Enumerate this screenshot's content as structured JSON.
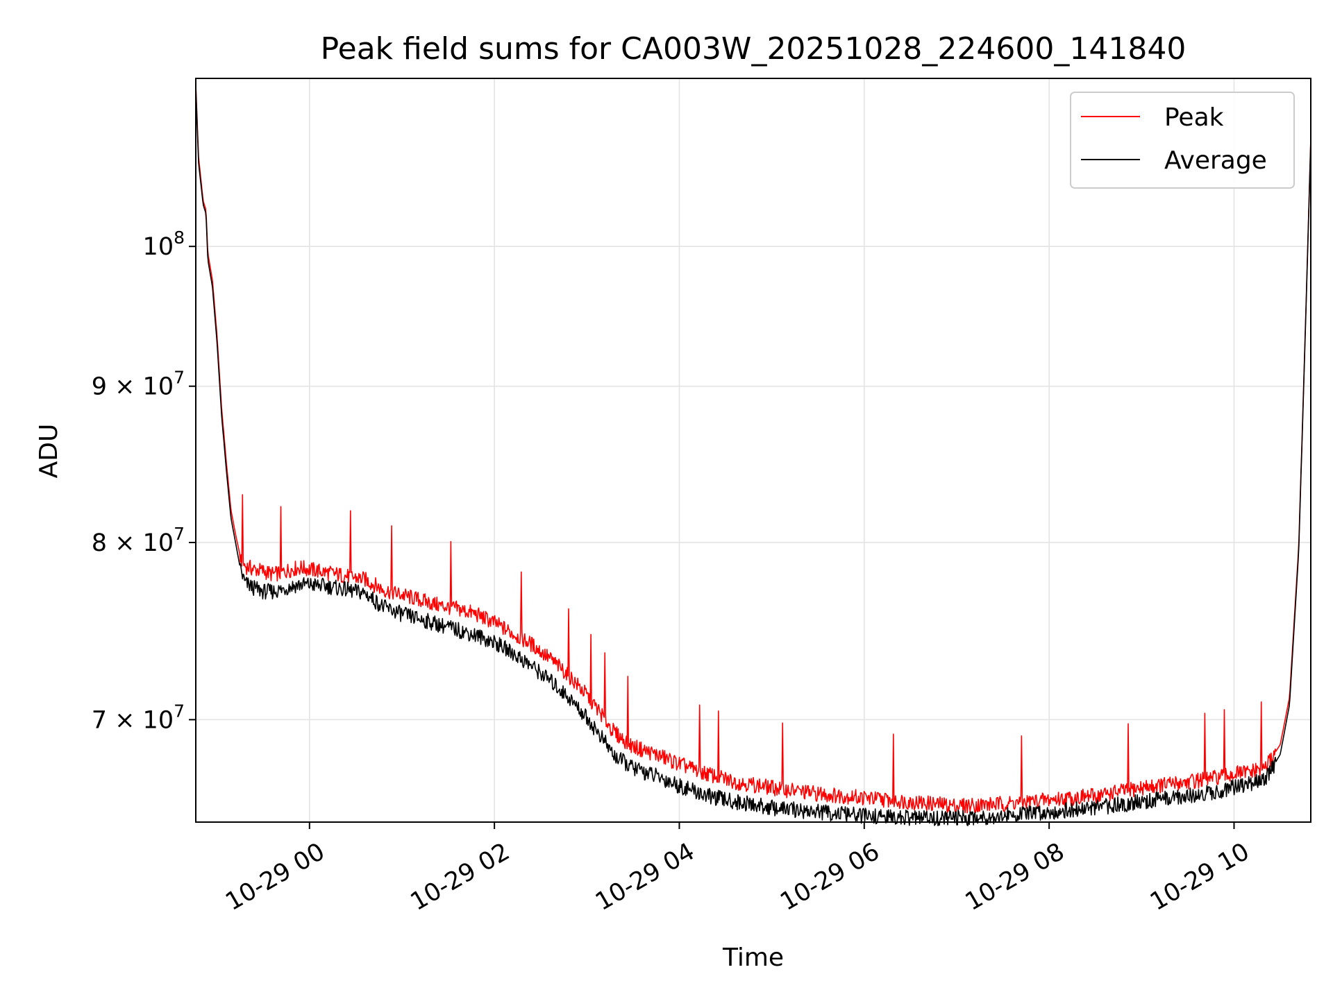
{
  "chart_data": {
    "type": "line",
    "title": "Peak field sums for CA003W_20251028_224600_141840",
    "xlabel": "Time",
    "ylabel": "ADU",
    "y_scale": "log",
    "grid": true,
    "legend_position": "top-right",
    "x_unit": "hours since 10-29 00:00",
    "xlim": [
      -1.23,
      10.83
    ],
    "ylim": [
      64800000,
      113500000
    ],
    "x_ticks": [
      {
        "value": 0,
        "label": "10-29 00"
      },
      {
        "value": 2,
        "label": "10-29 02"
      },
      {
        "value": 4,
        "label": "10-29 04"
      },
      {
        "value": 6,
        "label": "10-29 06"
      },
      {
        "value": 8,
        "label": "10-29 08"
      },
      {
        "value": 10,
        "label": "10-29 10"
      }
    ],
    "y_ticks": [
      {
        "value": 100000000,
        "base": "10",
        "exp": "8"
      },
      {
        "value": 90000000,
        "base": "9 × 10",
        "exp": "7"
      },
      {
        "value": 80000000,
        "base": "8 × 10",
        "exp": "7"
      },
      {
        "value": 70000000,
        "base": "7 × 10",
        "exp": "7"
      }
    ],
    "series": [
      {
        "name": "Peak",
        "color": "#ff0000",
        "x": [
          -1.23,
          -1.2,
          -1.15,
          -1.12,
          -1.1,
          -1.05,
          -1.0,
          -0.95,
          -0.9,
          -0.85,
          -0.8,
          -0.75,
          -0.7,
          -0.6,
          -0.5,
          -0.4,
          -0.3,
          -0.2,
          -0.1,
          0.0,
          0.2,
          0.4,
          0.6,
          0.8,
          1.0,
          1.2,
          1.4,
          1.6,
          1.8,
          2.0,
          2.2,
          2.4,
          2.6,
          2.8,
          3.0,
          3.2,
          3.3,
          3.5,
          3.8,
          4.0,
          4.3,
          4.6,
          5.0,
          5.5,
          6.0,
          6.5,
          7.0,
          7.5,
          8.0,
          8.5,
          9.0,
          9.5,
          9.8,
          10.0,
          10.2,
          10.35,
          10.5,
          10.6,
          10.7,
          10.78,
          10.83
        ],
        "y": [
          113000000,
          107000000,
          103500000,
          102800000,
          99500000,
          97500000,
          93500000,
          88500000,
          85000000,
          82000000,
          80500000,
          79200000,
          78600000,
          78400000,
          78300000,
          78100000,
          78200000,
          78400000,
          78500000,
          78400000,
          78200000,
          78000000,
          77800000,
          77200000,
          76900000,
          76600000,
          76300000,
          76100000,
          75800000,
          75300000,
          74700000,
          74100000,
          73300000,
          72400000,
          71300000,
          70000000,
          69300000,
          68600000,
          68100000,
          67700000,
          67200000,
          66800000,
          66500000,
          66200000,
          66000000,
          65800000,
          65600000,
          65700000,
          65900000,
          66100000,
          66500000,
          66800000,
          67000000,
          67200000,
          67300000,
          67600000,
          68700000,
          71200000,
          79800000,
          96000000,
          108500000
        ]
      },
      {
        "name": "Average",
        "color": "#000000",
        "x": [
          -1.23,
          -1.2,
          -1.15,
          -1.12,
          -1.1,
          -1.05,
          -1.0,
          -0.95,
          -0.9,
          -0.85,
          -0.8,
          -0.75,
          -0.7,
          -0.6,
          -0.5,
          -0.4,
          -0.3,
          -0.2,
          -0.1,
          0.0,
          0.2,
          0.4,
          0.6,
          0.8,
          1.0,
          1.2,
          1.4,
          1.6,
          1.8,
          2.0,
          2.2,
          2.4,
          2.6,
          2.8,
          3.0,
          3.2,
          3.3,
          3.5,
          3.8,
          4.0,
          4.3,
          4.6,
          5.0,
          5.5,
          6.0,
          6.5,
          7.0,
          7.5,
          8.0,
          8.5,
          9.0,
          9.5,
          9.8,
          10.0,
          10.2,
          10.35,
          10.5,
          10.6,
          10.7,
          10.78,
          10.83
        ],
        "y": [
          112800000,
          106500000,
          103200000,
          102500000,
          99000000,
          97000000,
          93000000,
          88000000,
          84500000,
          81500000,
          80000000,
          78500000,
          77600000,
          77300000,
          77100000,
          77100000,
          77200000,
          77400000,
          77500000,
          77500000,
          77400000,
          77200000,
          77000000,
          76200000,
          75800000,
          75500000,
          75200000,
          74900000,
          74600000,
          74200000,
          73600000,
          72900000,
          72100000,
          71200000,
          70100000,
          68800000,
          68100000,
          67500000,
          67000000,
          66600000,
          66100000,
          65800000,
          65500000,
          65300000,
          65100000,
          65000000,
          65000000,
          65100000,
          65300000,
          65500000,
          65800000,
          66100000,
          66300000,
          66500000,
          66700000,
          67000000,
          68200000,
          70800000,
          79500000,
          95800000,
          108300000
        ]
      }
    ]
  }
}
